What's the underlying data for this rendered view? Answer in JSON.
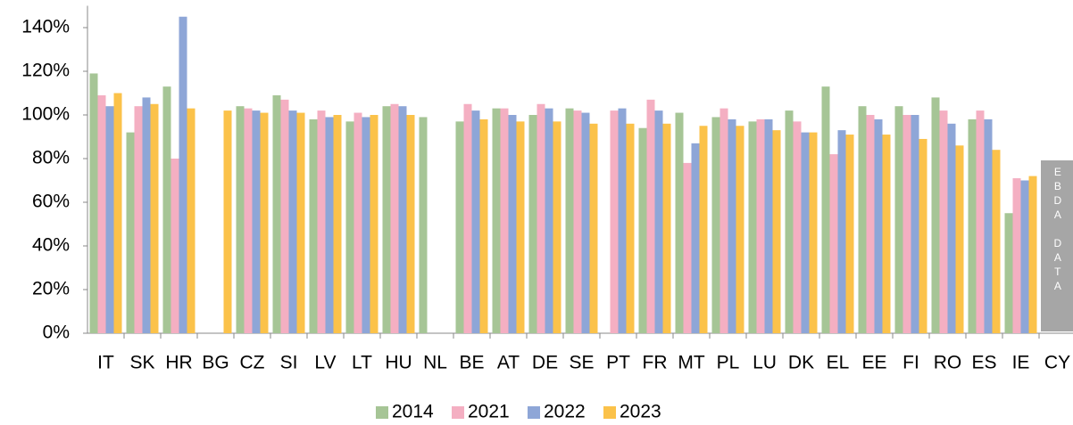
{
  "chart_data": {
    "type": "bar",
    "categories": [
      "IT",
      "SK",
      "HR",
      "BG",
      "CZ",
      "SI",
      "LV",
      "LT",
      "HU",
      "NL",
      "BE",
      "AT",
      "DE",
      "SE",
      "PT",
      "FR",
      "MT",
      "PL",
      "LU",
      "DK",
      "EL",
      "EE",
      "FI",
      "RO",
      "ES",
      "IE",
      "CY"
    ],
    "series": [
      {
        "name": "2014",
        "color": "#a6c596",
        "values": [
          119,
          92,
          113,
          null,
          104,
          109,
          98,
          97,
          104,
          99,
          97,
          103,
          100,
          103,
          null,
          94,
          101,
          99,
          97,
          102,
          113,
          104,
          104,
          108,
          98,
          55,
          null
        ]
      },
      {
        "name": "2021",
        "color": "#f4afc2",
        "values": [
          109,
          104,
          80,
          null,
          103,
          107,
          102,
          101,
          105,
          null,
          105,
          103,
          105,
          102,
          102,
          107,
          78,
          103,
          98,
          97,
          82,
          100,
          100,
          102,
          102,
          71,
          null
        ]
      },
      {
        "name": "2022",
        "color": "#8ea6d7",
        "values": [
          104,
          108,
          145,
          null,
          102,
          102,
          99,
          99,
          104,
          null,
          102,
          100,
          103,
          101,
          103,
          102,
          87,
          98,
          98,
          92,
          93,
          98,
          100,
          96,
          98,
          70,
          null
        ]
      },
      {
        "name": "2023",
        "color": "#fbc24a",
        "values": [
          110,
          105,
          103,
          102,
          101,
          101,
          100,
          100,
          100,
          null,
          98,
          97,
          97,
          96,
          96,
          96,
          95,
          95,
          93,
          92,
          91,
          91,
          89,
          86,
          84,
          72,
          null
        ]
      }
    ],
    "ylim": [
      0,
      150
    ],
    "yticks": [
      {
        "value": 0,
        "label": "0%"
      },
      {
        "value": 20,
        "label": "20%"
      },
      {
        "value": 40,
        "label": "40%"
      },
      {
        "value": 60,
        "label": "60%"
      },
      {
        "value": 80,
        "label": "80%"
      },
      {
        "value": 100,
        "label": "100%"
      },
      {
        "value": 120,
        "label": "120%"
      },
      {
        "value": 140,
        "label": "140%"
      }
    ],
    "annotation": "EBDA DATA",
    "legend": "bottom"
  }
}
